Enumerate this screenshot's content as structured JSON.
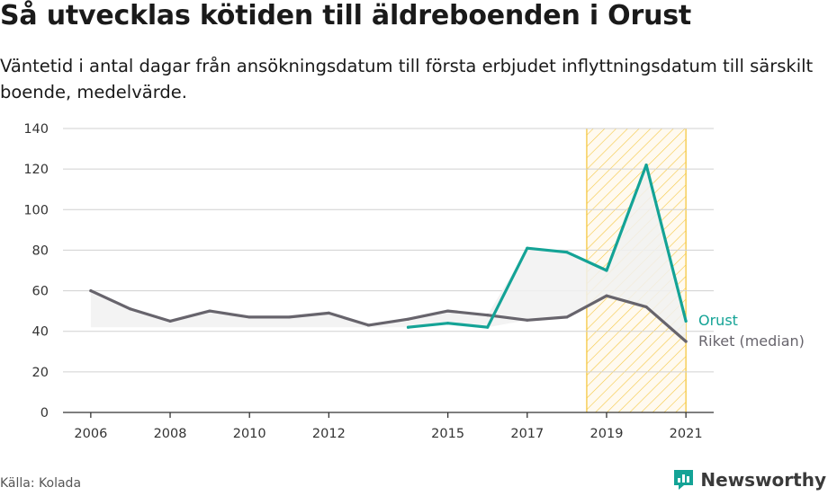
{
  "title": "Så utvecklas kötiden till äldreboenden i Orust",
  "subtitle": "Väntetid i antal dagar från ansökningsdatum till första erbjudet inflyttningsdatum till särskilt boende, medelvärde.",
  "source": "Källa: Kolada",
  "brand": {
    "name": "Newsworthy",
    "icon": "newsworthy-logo-icon"
  },
  "colors": {
    "orust": "#14a396",
    "riket": "#67646c",
    "highlight": "#f5c842",
    "grid": "#d0d0d0",
    "fill": "#f1f1f1"
  },
  "chart_data": {
    "type": "line",
    "x_ticks": [
      2006,
      2008,
      2010,
      2012,
      2015,
      2017,
      2019,
      2021
    ],
    "y_ticks": [
      0,
      20,
      40,
      60,
      80,
      100,
      120,
      140
    ],
    "ylim": [
      0,
      140
    ],
    "xlim": [
      2005.3,
      2021.7
    ],
    "grid": "horizontal",
    "highlight_range": [
      2018.5,
      2021
    ],
    "series": [
      {
        "name": "Orust",
        "x": [
          2014,
          2015,
          2016,
          2017,
          2018,
          2019,
          2020,
          2021
        ],
        "values": [
          42,
          44,
          42,
          81,
          79,
          70,
          122,
          45
        ]
      },
      {
        "name": "Riket (median)",
        "x": [
          2006,
          2007,
          2008,
          2009,
          2010,
          2011,
          2012,
          2013,
          2014,
          2015,
          2016,
          2017,
          2018,
          2019,
          2020,
          2021
        ],
        "values": [
          60,
          51,
          45,
          50,
          47,
          47,
          49,
          43,
          46,
          50,
          48,
          45.5,
          47,
          57.5,
          52,
          35
        ]
      }
    ]
  }
}
